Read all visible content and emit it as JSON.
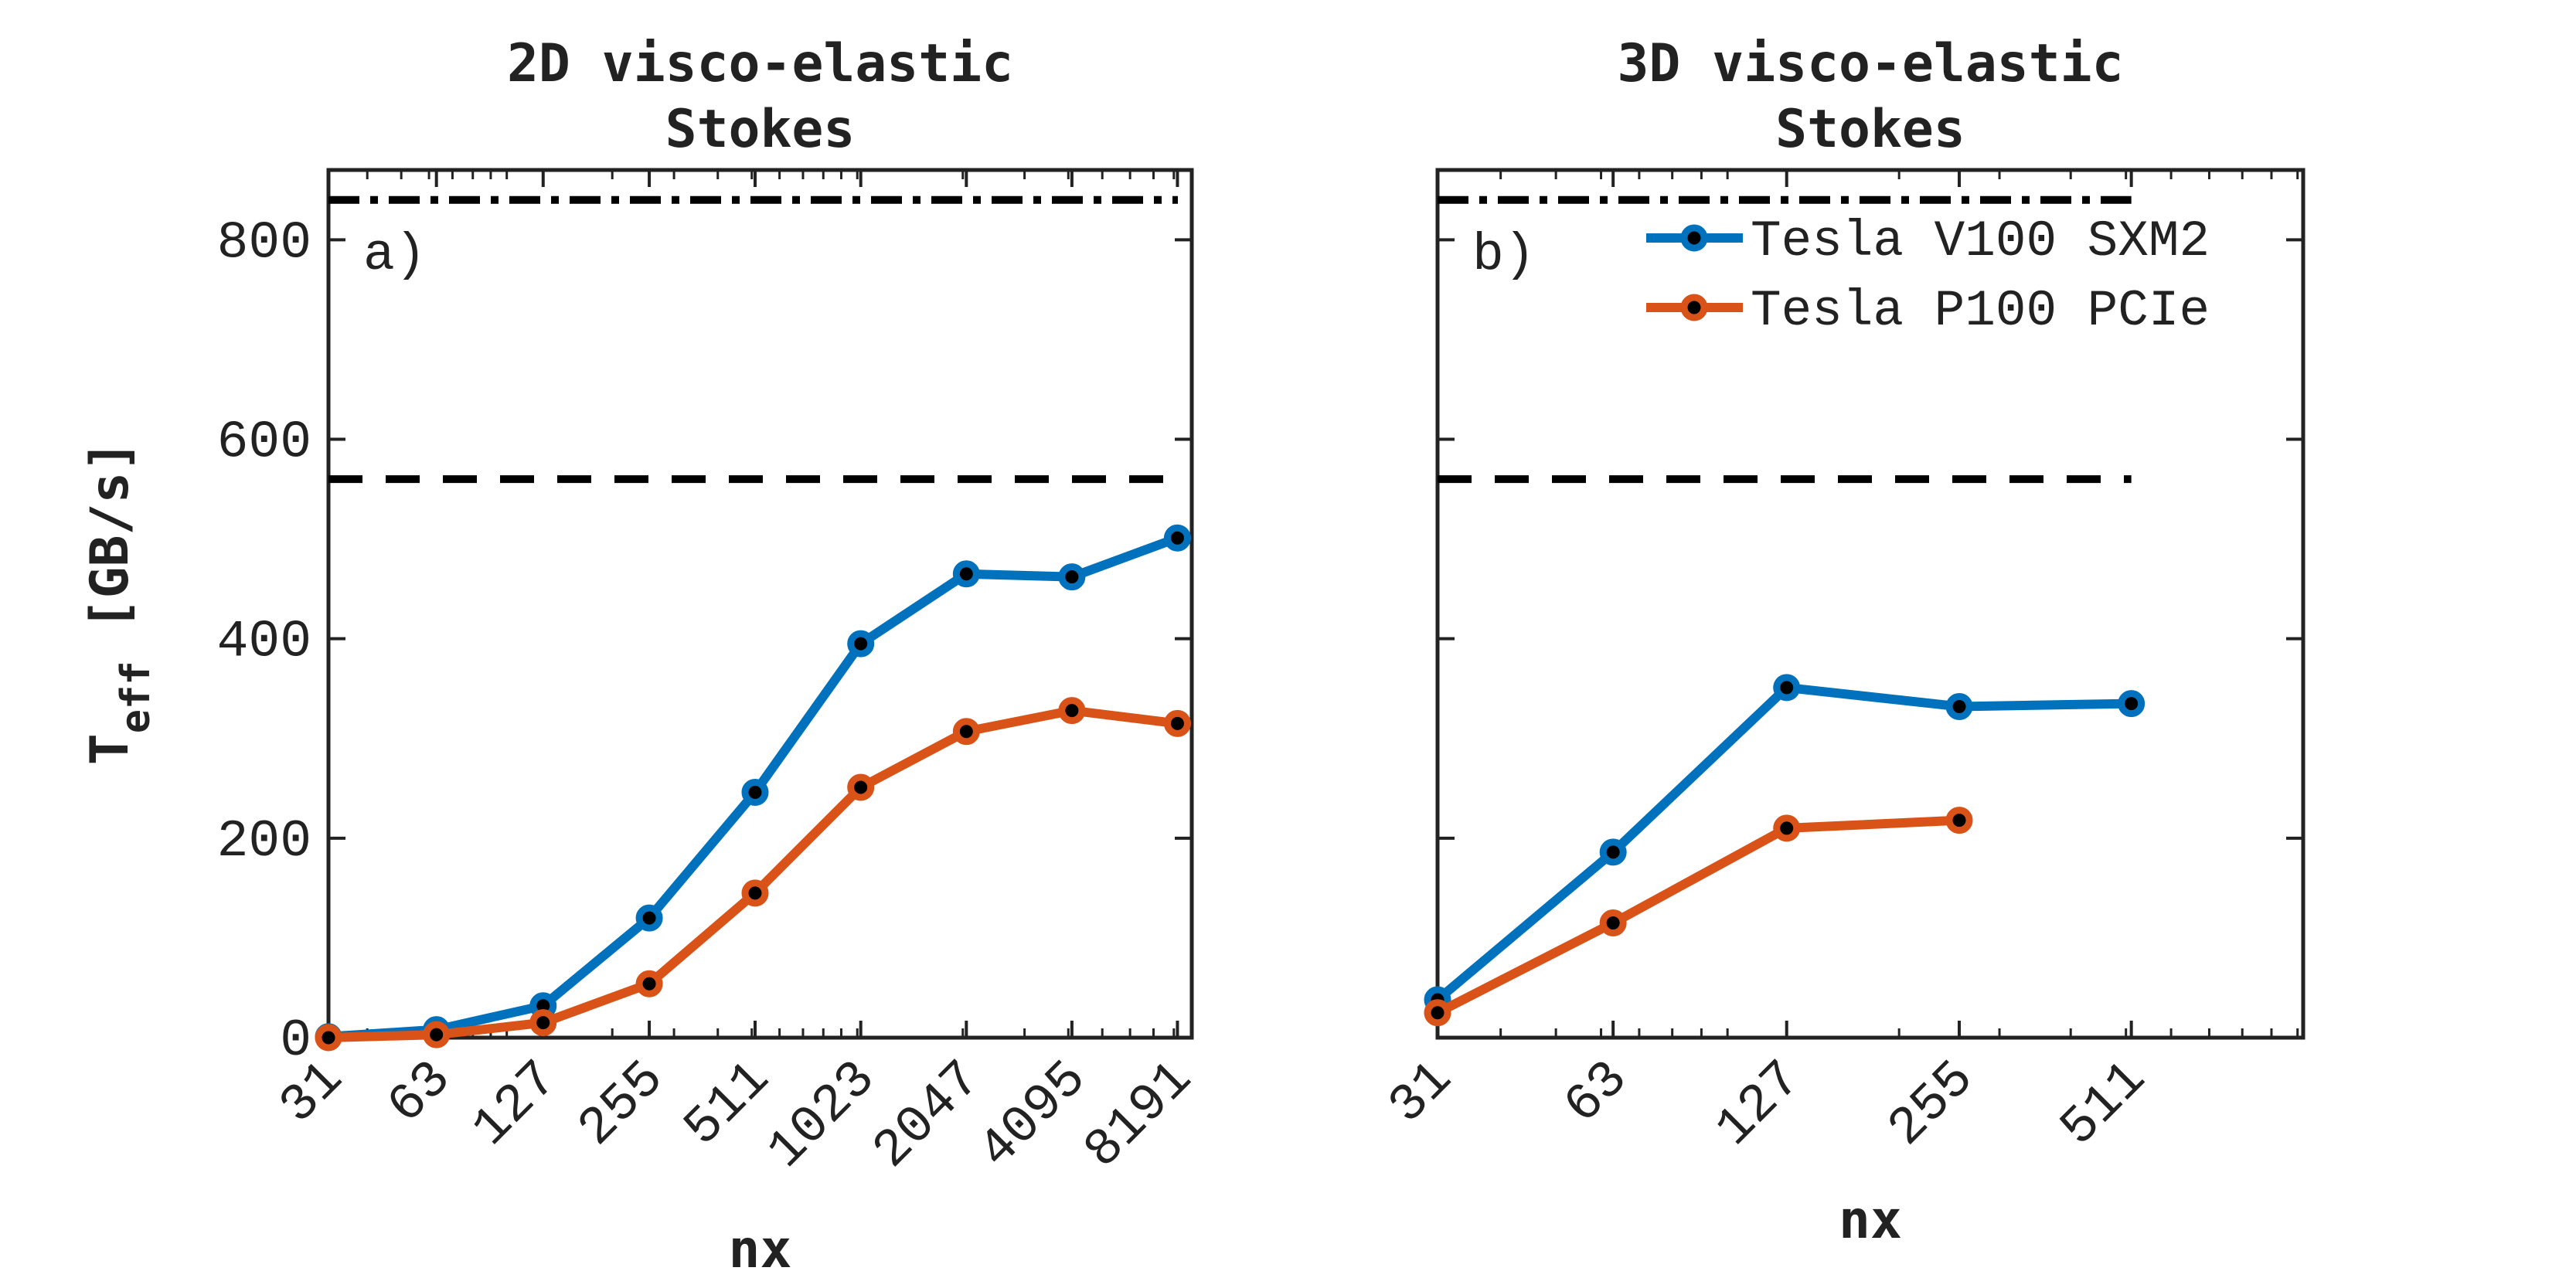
{
  "chart_data": [
    {
      "type": "line",
      "panel_label": "a)",
      "title": [
        "2D visco-elastic",
        "Stokes"
      ],
      "xlabel": "nx",
      "ylabel_main": "T",
      "ylabel_sub": "eff",
      "ylabel_unit": "[GB/s]",
      "x_scale": "log2",
      "xlim": [
        31,
        9000
      ],
      "ylim": [
        0,
        870
      ],
      "x_ticks": [
        31,
        63,
        127,
        255,
        511,
        1023,
        2047,
        4095,
        8191
      ],
      "x_tick_labels": [
        "31",
        "63",
        "127",
        "255",
        "511",
        "1023",
        "2047",
        "4095",
        "8191"
      ],
      "y_ticks": [
        0,
        200,
        400,
        600,
        800
      ],
      "y_tick_labels": [
        "0",
        "200",
        "400",
        "600",
        "800"
      ],
      "reference_lines": [
        {
          "style": "dash-dot",
          "y": 840,
          "color": "#000000"
        },
        {
          "style": "dashed",
          "y": 560,
          "color": "#000000"
        }
      ],
      "series": [
        {
          "color": "#0072BD",
          "x": [
            31,
            63,
            127,
            255,
            511,
            1023,
            2047,
            4095,
            8191
          ],
          "values": [
            1,
            8,
            32,
            120,
            246,
            395,
            465,
            462,
            501
          ]
        },
        {
          "color": "#D95319",
          "x": [
            31,
            63,
            127,
            255,
            511,
            1023,
            2047,
            4095,
            8191
          ],
          "values": [
            0,
            3,
            15,
            54,
            145,
            251,
            307,
            328,
            315
          ]
        }
      ],
      "legend": null,
      "grid": false
    },
    {
      "type": "line",
      "panel_label": "b)",
      "title": [
        "3D visco-elastic",
        "Stokes"
      ],
      "xlabel": "nx",
      "x_scale": "log2",
      "xlim": [
        31,
        1023
      ],
      "ylim": [
        0,
        870
      ],
      "x_ticks": [
        31,
        63,
        127,
        255,
        511
      ],
      "x_tick_labels": [
        "31",
        "63",
        "127",
        "255",
        "511"
      ],
      "y_ticks": [
        0,
        200,
        400,
        600,
        800
      ],
      "reference_lines": [
        {
          "style": "dash-dot",
          "y": 840,
          "color": "#000000"
        },
        {
          "style": "dashed",
          "y": 560,
          "color": "#000000"
        }
      ],
      "series": [
        {
          "name": "Tesla V100 SXM2",
          "color": "#0072BD",
          "x": [
            31,
            63,
            127,
            255,
            511
          ],
          "values": [
            38,
            186,
            351,
            332,
            335
          ]
        },
        {
          "name": "Tesla P100 PCIe",
          "color": "#D95319",
          "x": [
            31,
            63,
            127,
            255
          ],
          "values": [
            25,
            115,
            210,
            218
          ]
        }
      ],
      "legend": "top-right",
      "grid": false
    }
  ]
}
